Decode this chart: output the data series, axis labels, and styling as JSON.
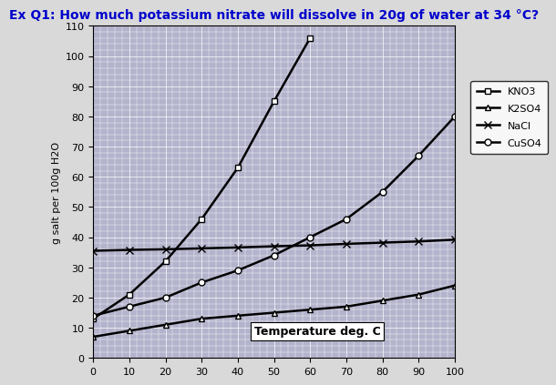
{
  "title": "Ex Q1: How much potassium nitrate will dissolve in 20g of water at 34 °C?",
  "title_color": "#0000cc",
  "xlabel_text": "Temperature deg. C",
  "ylabel": "g salt per 100g H2O",
  "xlim": [
    0,
    100
  ],
  "ylim": [
    0,
    110
  ],
  "xticks": [
    0,
    10,
    20,
    30,
    40,
    50,
    60,
    70,
    80,
    90,
    100
  ],
  "yticks": [
    0,
    10,
    20,
    30,
    40,
    50,
    60,
    70,
    80,
    90,
    100,
    110
  ],
  "background_color": "#d9d9d9",
  "plot_bg_color": "#b3b3cc",
  "grid_color": "#ffffff",
  "series": [
    {
      "label": "KNO3",
      "x": [
        0,
        10,
        20,
        30,
        40,
        50,
        60
      ],
      "y": [
        13,
        21,
        32,
        46,
        63,
        85,
        106
      ],
      "marker": "s",
      "color": "#000000",
      "markersize": 5,
      "markerfacecolor": "#ffffff",
      "linewidth": 1.8
    },
    {
      "label": "K2SO4",
      "x": [
        0,
        10,
        20,
        30,
        40,
        50,
        60,
        70,
        80,
        90,
        100
      ],
      "y": [
        7,
        9,
        11,
        13,
        14,
        15,
        16,
        17,
        19,
        21,
        24
      ],
      "marker": "^",
      "color": "#000000",
      "markersize": 5,
      "markerfacecolor": "#ffffff",
      "linewidth": 1.8
    },
    {
      "label": "NaCl",
      "x": [
        0,
        10,
        20,
        30,
        40,
        50,
        60,
        70,
        80,
        90,
        100
      ],
      "y": [
        35.5,
        35.8,
        36.0,
        36.3,
        36.6,
        37.0,
        37.3,
        37.8,
        38.2,
        38.6,
        39.2
      ],
      "marker": "x",
      "color": "#000000",
      "markersize": 6,
      "markerfacecolor": "#000000",
      "linewidth": 1.8
    },
    {
      "label": "CuSO4",
      "x": [
        0,
        10,
        20,
        30,
        40,
        50,
        60,
        70,
        80,
        90,
        100
      ],
      "y": [
        14,
        17,
        20,
        25,
        29,
        34,
        40,
        46,
        55,
        67,
        80
      ],
      "marker": "o",
      "color": "#000000",
      "markersize": 5,
      "markerfacecolor": "#ffffff",
      "linewidth": 1.8
    }
  ]
}
